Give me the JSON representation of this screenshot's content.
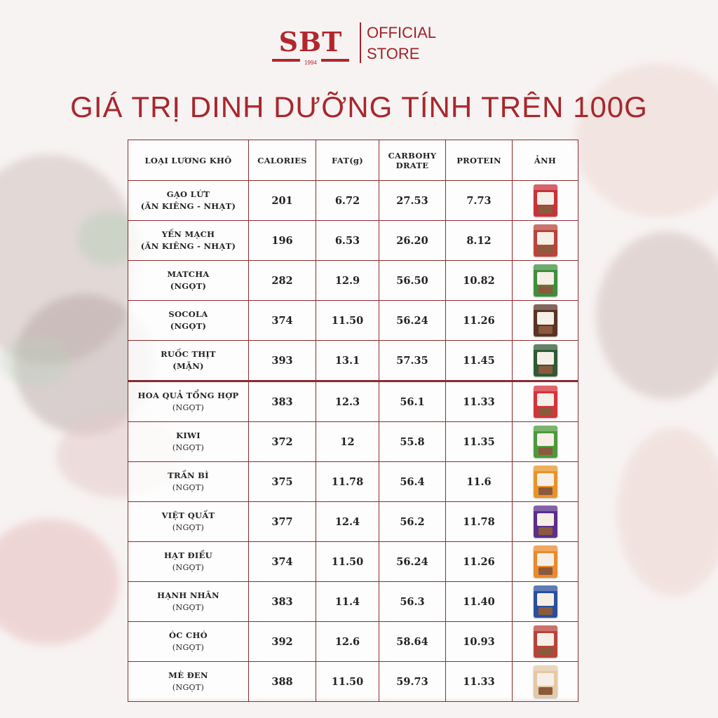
{
  "brand": {
    "logo_text": "SBT",
    "logo_year": "1994",
    "store_line1": "OFFICIAL",
    "store_line2": "STORE"
  },
  "headline": "GIÁ TRỊ DINH DƯỠNG TÍNH TRÊN 100G",
  "table": {
    "headers": {
      "type": "LOẠI LƯƠNG KHÔ",
      "calories": "CALORIES",
      "fat": "FAT(g)",
      "carb_line1": "CARBOHY",
      "carb_line2": "DRATE",
      "protein": "PROTEIN",
      "image": "ẢNH"
    },
    "rows": [
      {
        "name": "GẠO LỨT",
        "sub": "(ĂN KIÊNG - NHẠT)",
        "calories": "201",
        "fat": "6.72",
        "carb": "27.53",
        "protein": "7.73",
        "pack_color": "#c8323a",
        "pack_icon": "red-snack-pack-icon"
      },
      {
        "name": "YẾN MẠCH",
        "sub": "(ĂN KIÊNG - NHẠT)",
        "calories": "196",
        "fat": "6.53",
        "carb": "26.20",
        "protein": "8.12",
        "pack_color": "#b8443e",
        "pack_icon": "red-snack-pack-icon"
      },
      {
        "name": "MATCHA",
        "sub": "(NGỌT)",
        "calories": "282",
        "fat": "12.9",
        "carb": "56.50",
        "protein": "10.82",
        "pack_color": "#3e8f3a",
        "pack_icon": "green-snack-pack-icon"
      },
      {
        "name": "SOCOLA",
        "sub": "(NGỌT)",
        "calories": "374",
        "fat": "11.50",
        "carb": "56.24",
        "protein": "11.26",
        "pack_color": "#5a3426",
        "pack_icon": "brown-snack-pack-icon"
      },
      {
        "name": "RUỐC THỊT",
        "sub": "(MẶN)",
        "calories": "393",
        "fat": "13.1",
        "carb": "57.35",
        "protein": "11.45",
        "pack_color": "#2f5a34",
        "pack_icon": "dark-green-snack-pack-icon"
      },
      {
        "name": "HOA QUẢ TỔNG HỢP",
        "sub": "(NGỌT)",
        "calories": "383",
        "fat": "12.3",
        "carb": "56.1",
        "protein": "11.33",
        "pack_color": "#d8323a",
        "pack_icon": "red-snack-pack-icon"
      },
      {
        "name": "KIWI",
        "sub": "(NGỌT)",
        "calories": "372",
        "fat": "12",
        "carb": "55.8",
        "protein": "11.35",
        "pack_color": "#4c9a3c",
        "pack_icon": "green-snack-pack-icon"
      },
      {
        "name": "TRẦN BÌ",
        "sub": "(NGỌT)",
        "calories": "375",
        "fat": "11.78",
        "carb": "56.4",
        "protein": "11.6",
        "pack_color": "#e8932a",
        "pack_icon": "orange-snack-pack-icon"
      },
      {
        "name": "VIỆT QUẤT",
        "sub": "(NGỌT)",
        "calories": "377",
        "fat": "12.4",
        "carb": "56.2",
        "protein": "11.78",
        "pack_color": "#5b2e8c",
        "pack_icon": "purple-snack-pack-icon"
      },
      {
        "name": "HẠT ĐIỀU",
        "sub": "(NGỌT)",
        "calories": "374",
        "fat": "11.50",
        "carb": "56.24",
        "protein": "11.26",
        "pack_color": "#ea8a2c",
        "pack_icon": "orange-snack-pack-icon"
      },
      {
        "name": "HẠNH NHÂN",
        "sub": "(NGỌT)",
        "calories": "383",
        "fat": "11.4",
        "carb": "56.3",
        "protein": "11.40",
        "pack_color": "#2a4f9c",
        "pack_icon": "blue-snack-pack-icon"
      },
      {
        "name": "ÓC CHÓ",
        "sub": "(NGỌT)",
        "calories": "392",
        "fat": "12.6",
        "carb": "58.64",
        "protein": "10.93",
        "pack_color": "#b8433a",
        "pack_icon": "red-snack-pack-icon"
      },
      {
        "name": "MÈ ĐEN",
        "sub": "(NGỌT)",
        "calories": "388",
        "fat": "11.50",
        "carb": "59.73",
        "protein": "11.33",
        "pack_color": "#e3c9a6",
        "pack_icon": "beige-snack-pack-icon"
      }
    ]
  }
}
